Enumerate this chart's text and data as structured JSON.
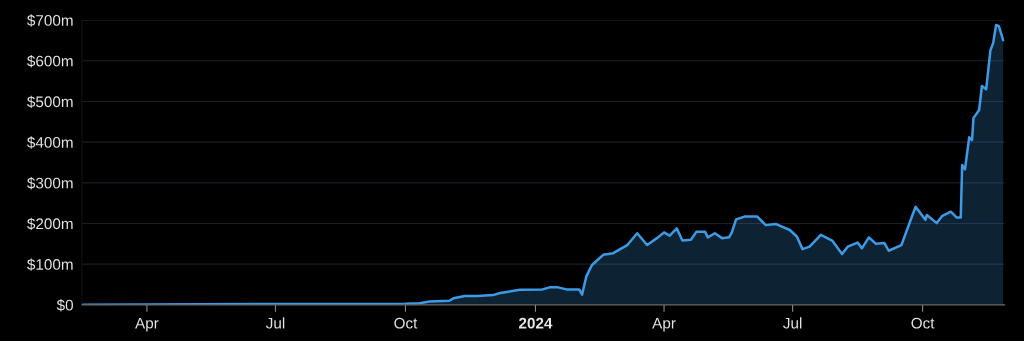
{
  "chart_data": {
    "type": "area",
    "x": [
      "2023-02-14",
      "2023-04-01",
      "2023-07-01",
      "2023-10-01",
      "2023-10-11",
      "2023-10-18",
      "2023-11-01",
      "2023-11-04",
      "2023-11-12",
      "2023-11-21",
      "2023-12-02",
      "2023-12-07",
      "2023-12-21",
      "2024-01-06",
      "2024-01-11",
      "2024-01-17",
      "2024-01-23",
      "2024-02-01",
      "2024-02-03",
      "2024-02-06",
      "2024-02-10",
      "2024-02-18",
      "2024-02-25",
      "2024-03-06",
      "2024-03-13",
      "2024-03-20",
      "2024-03-27",
      "2024-04-01",
      "2024-04-05",
      "2024-04-10",
      "2024-04-14",
      "2024-04-20",
      "2024-04-24",
      "2024-04-30",
      "2024-05-02",
      "2024-05-07",
      "2024-05-12",
      "2024-05-17",
      "2024-05-19",
      "2024-05-22",
      "2024-05-28",
      "2024-06-06",
      "2024-06-12",
      "2024-06-19",
      "2024-06-29",
      "2024-07-04",
      "2024-07-08",
      "2024-07-13",
      "2024-07-21",
      "2024-07-29",
      "2024-08-05",
      "2024-08-09",
      "2024-08-16",
      "2024-08-19",
      "2024-08-24",
      "2024-08-29",
      "2024-09-04",
      "2024-09-07",
      "2024-09-16",
      "2024-09-23",
      "2024-09-26",
      "2024-10-03",
      "2024-10-04",
      "2024-10-11",
      "2024-10-15",
      "2024-10-21",
      "2024-10-25",
      "2024-10-28",
      "2024-10-29",
      "2024-10-31",
      "2024-11-03",
      "2024-11-05",
      "2024-11-06",
      "2024-11-10",
      "2024-11-12",
      "2024-11-15",
      "2024-11-18",
      "2024-11-20",
      "2024-11-22",
      "2024-11-24",
      "2024-11-27"
    ],
    "series": [
      {
        "color": "#3d9be6",
        "values": [
          0.5,
          1,
          2,
          3,
          4,
          8,
          10,
          16,
          22,
          22,
          24,
          29,
          37,
          38,
          43,
          43,
          38,
          38,
          25,
          70,
          98,
          123,
          127,
          147,
          176,
          147,
          164,
          178,
          170,
          188,
          158,
          160,
          180,
          180,
          166,
          176,
          164,
          166,
          178,
          210,
          217,
          217,
          196,
          199,
          184,
          168,
          137,
          143,
          172,
          158,
          125,
          143,
          153,
          139,
          166,
          150,
          152,
          133,
          147,
          213,
          241,
          209,
          221,
          201,
          219,
          229,
          215,
          215,
          344,
          333,
          412,
          405,
          459,
          479,
          538,
          530,
          626,
          644,
          688,
          685,
          651
        ]
      }
    ],
    "xlim": [
      "2023-02-14",
      "2024-11-28"
    ],
    "xticks": [
      {
        "value": "2023-04-01",
        "label": "Apr"
      },
      {
        "value": "2023-07-01",
        "label": "Jul"
      },
      {
        "value": "2023-10-01",
        "label": "Oct"
      },
      {
        "value": "2024-01-01",
        "label": "2024"
      },
      {
        "value": "2024-04-01",
        "label": "Apr"
      },
      {
        "value": "2024-07-01",
        "label": "Jul"
      },
      {
        "value": "2024-10-01",
        "label": "Oct"
      }
    ],
    "ylim": [
      0,
      700
    ],
    "yticks": [
      {
        "value": 0,
        "label": "$0"
      },
      {
        "value": 100,
        "label": "$100m"
      },
      {
        "value": 200,
        "label": "$200m"
      },
      {
        "value": 300,
        "label": "$300m"
      },
      {
        "value": 400,
        "label": "$400m"
      },
      {
        "value": 500,
        "label": "$500m"
      },
      {
        "value": 600,
        "label": "$600m"
      },
      {
        "value": 700,
        "label": "$700m"
      }
    ],
    "grid": "y",
    "legend": false
  }
}
